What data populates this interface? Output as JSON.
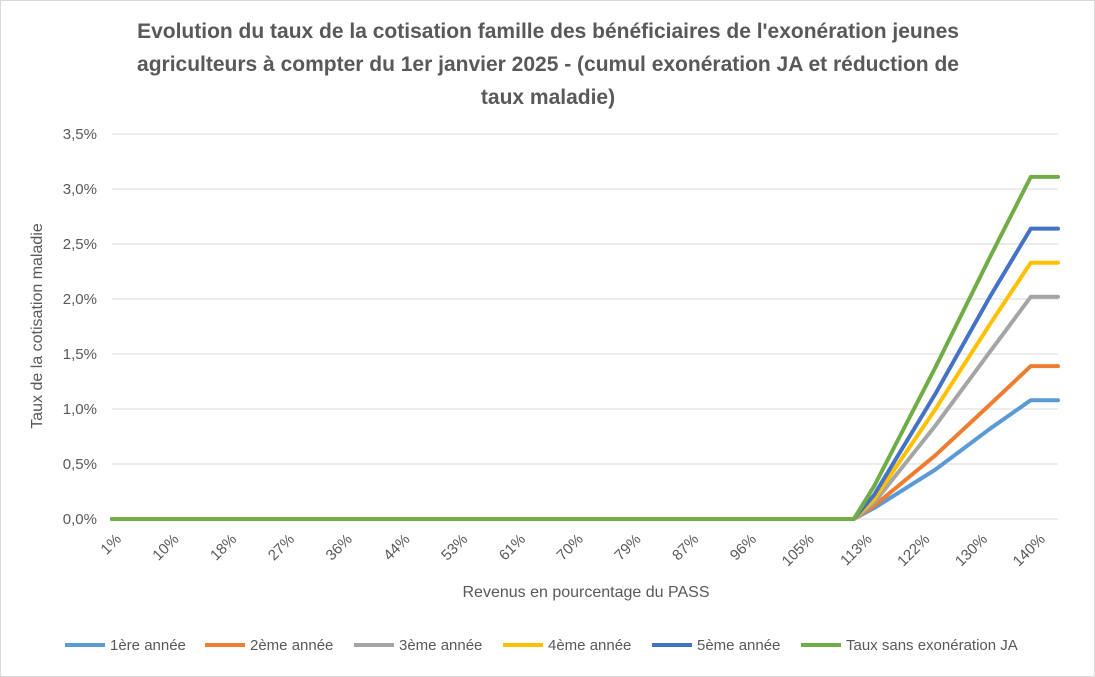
{
  "chart_data": {
    "type": "line",
    "title": "Evolution du taux de la cotisation famille des bénéficiaires de l'exonération jeunes agriculteurs à compter du 1er janvier 2025 - (cumul exonération JA et réduction de taux maladie)",
    "title_lines": [
      "Evolution du taux de la cotisation famille des bénéficiaires de l'exonération jeunes",
      "agriculteurs à compter du 1er janvier 2025 - (cumul exonération JA et réduction de",
      "taux maladie)"
    ],
    "xlabel": "Revenus en pourcentage du PASS",
    "ylabel": "Taux de la cotisation maladie",
    "x_tick_labels": [
      "1%",
      "10%",
      "18%",
      "27%",
      "36%",
      "44%",
      "53%",
      "61%",
      "70%",
      "79%",
      "87%",
      "96%",
      "105%",
      "113%",
      "122%",
      "130%",
      "140%"
    ],
    "y_tick_labels": [
      "0,0%",
      "0,5%",
      "1,0%",
      "1,5%",
      "2,0%",
      "2,5%",
      "3,0%",
      "3,5%"
    ],
    "x_unit": "% du PASS",
    "ylim": [
      0,
      3.5
    ],
    "grid": true,
    "legend_position": "bottom",
    "series": [
      {
        "name": "1ère année",
        "color": "#5B9BD5",
        "points": [
          [
            1,
            0
          ],
          [
            110,
            0
          ],
          [
            113,
            0.1
          ],
          [
            122,
            0.45
          ],
          [
            130,
            0.82
          ],
          [
            136,
            1.08
          ],
          [
            140,
            1.08
          ]
        ]
      },
      {
        "name": "2ème année",
        "color": "#ED7D31",
        "points": [
          [
            1,
            0
          ],
          [
            110,
            0
          ],
          [
            113,
            0.12
          ],
          [
            122,
            0.58
          ],
          [
            130,
            1.04
          ],
          [
            136,
            1.39
          ],
          [
            140,
            1.39
          ]
        ]
      },
      {
        "name": "3ème année",
        "color": "#A5A5A5",
        "points": [
          [
            1,
            0
          ],
          [
            110,
            0
          ],
          [
            113,
            0.15
          ],
          [
            122,
            0.85
          ],
          [
            130,
            1.52
          ],
          [
            136,
            2.02
          ],
          [
            140,
            2.02
          ]
        ]
      },
      {
        "name": "4ème année",
        "color": "#FFC000",
        "points": [
          [
            1,
            0
          ],
          [
            110,
            0
          ],
          [
            113,
            0.18
          ],
          [
            122,
            1.0
          ],
          [
            130,
            1.77
          ],
          [
            136,
            2.33
          ],
          [
            140,
            2.33
          ]
        ]
      },
      {
        "name": "5ème année",
        "color": "#4472C4",
        "points": [
          [
            1,
            0
          ],
          [
            110,
            0
          ],
          [
            113,
            0.22
          ],
          [
            122,
            1.14
          ],
          [
            130,
            2.02
          ],
          [
            136,
            2.64
          ],
          [
            140,
            2.64
          ]
        ]
      },
      {
        "name": "Taux sans exonération JA",
        "color": "#70AD47",
        "points": [
          [
            1,
            0
          ],
          [
            110,
            0
          ],
          [
            113,
            0.3
          ],
          [
            122,
            1.38
          ],
          [
            130,
            2.38
          ],
          [
            136,
            3.11
          ],
          [
            140,
            3.11
          ]
        ]
      }
    ]
  }
}
